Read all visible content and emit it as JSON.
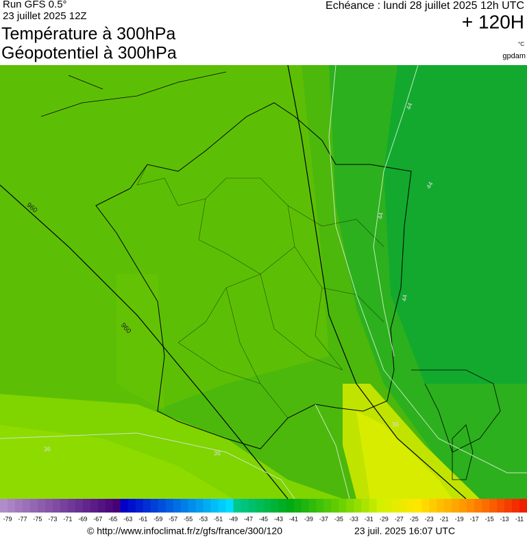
{
  "header": {
    "run": "Run GFS 0.5°",
    "run_date": "23 juillet 2025 12Z",
    "title_1": "Température à 300hPa",
    "title_2": "Géopotentiel à 300hPa",
    "valid": "Echéance : lundi 28 juillet 2025 12h UTC",
    "lead": "+ 120H",
    "unit": "°C",
    "unit_2": "gpdam"
  },
  "contours": {
    "geopotential": [
      "960",
      "960"
    ],
    "temperature": [
      "44",
      "44",
      "44",
      "44",
      "36",
      "36",
      "36"
    ]
  },
  "colorbar": {
    "labels": [
      -79,
      -77,
      -75,
      -73,
      -71,
      -69,
      -67,
      -65,
      -63,
      -61,
      -59,
      -57,
      -55,
      -53,
      -51,
      -49,
      -47,
      -45,
      -43,
      -41,
      -39,
      -37,
      -35,
      -33,
      -31,
      -29,
      -27,
      -25,
      -23,
      -21,
      -19,
      -17,
      -15,
      -13,
      -11
    ]
  },
  "footer": {
    "source": "© http://www.infoclimat.fr/z/gfs/france/300/120",
    "generated": "23 juil. 2025 16:07 UTC"
  }
}
